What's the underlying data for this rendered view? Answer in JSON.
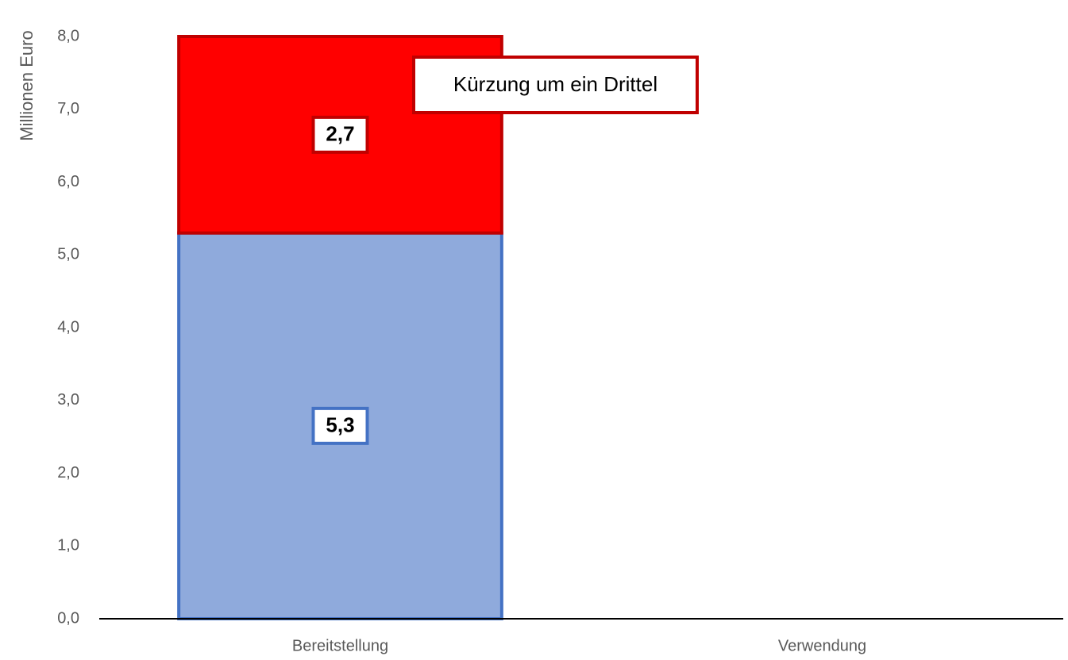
{
  "chart_data": {
    "type": "stacked_bar",
    "y_axis_label": "Millionen Euro",
    "categories": [
      "Bereitstellung",
      "Verwendung"
    ],
    "series": [
      {
        "color": "#8faadc",
        "border": "#4472c4",
        "values": [
          5.3,
          null
        ],
        "value_labels": [
          "5,3",
          null
        ]
      },
      {
        "color": "#ff0000",
        "border": "#c00000",
        "values": [
          2.7,
          null
        ],
        "value_labels": [
          "2,7",
          null
        ]
      }
    ],
    "annotation": "Kürzung um ein Drittel",
    "ylim": [
      0,
      8
    ],
    "yticks": [
      {
        "value": 0,
        "label": "0,0"
      },
      {
        "value": 1,
        "label": "1,0"
      },
      {
        "value": 2,
        "label": "2,0"
      },
      {
        "value": 3,
        "label": "3,0"
      },
      {
        "value": 4,
        "label": "4,0"
      },
      {
        "value": 5,
        "label": "5,0"
      },
      {
        "value": 6,
        "label": "6,0"
      },
      {
        "value": 7,
        "label": "7,0"
      },
      {
        "value": 8,
        "label": "8,0"
      }
    ],
    "grid": false
  }
}
